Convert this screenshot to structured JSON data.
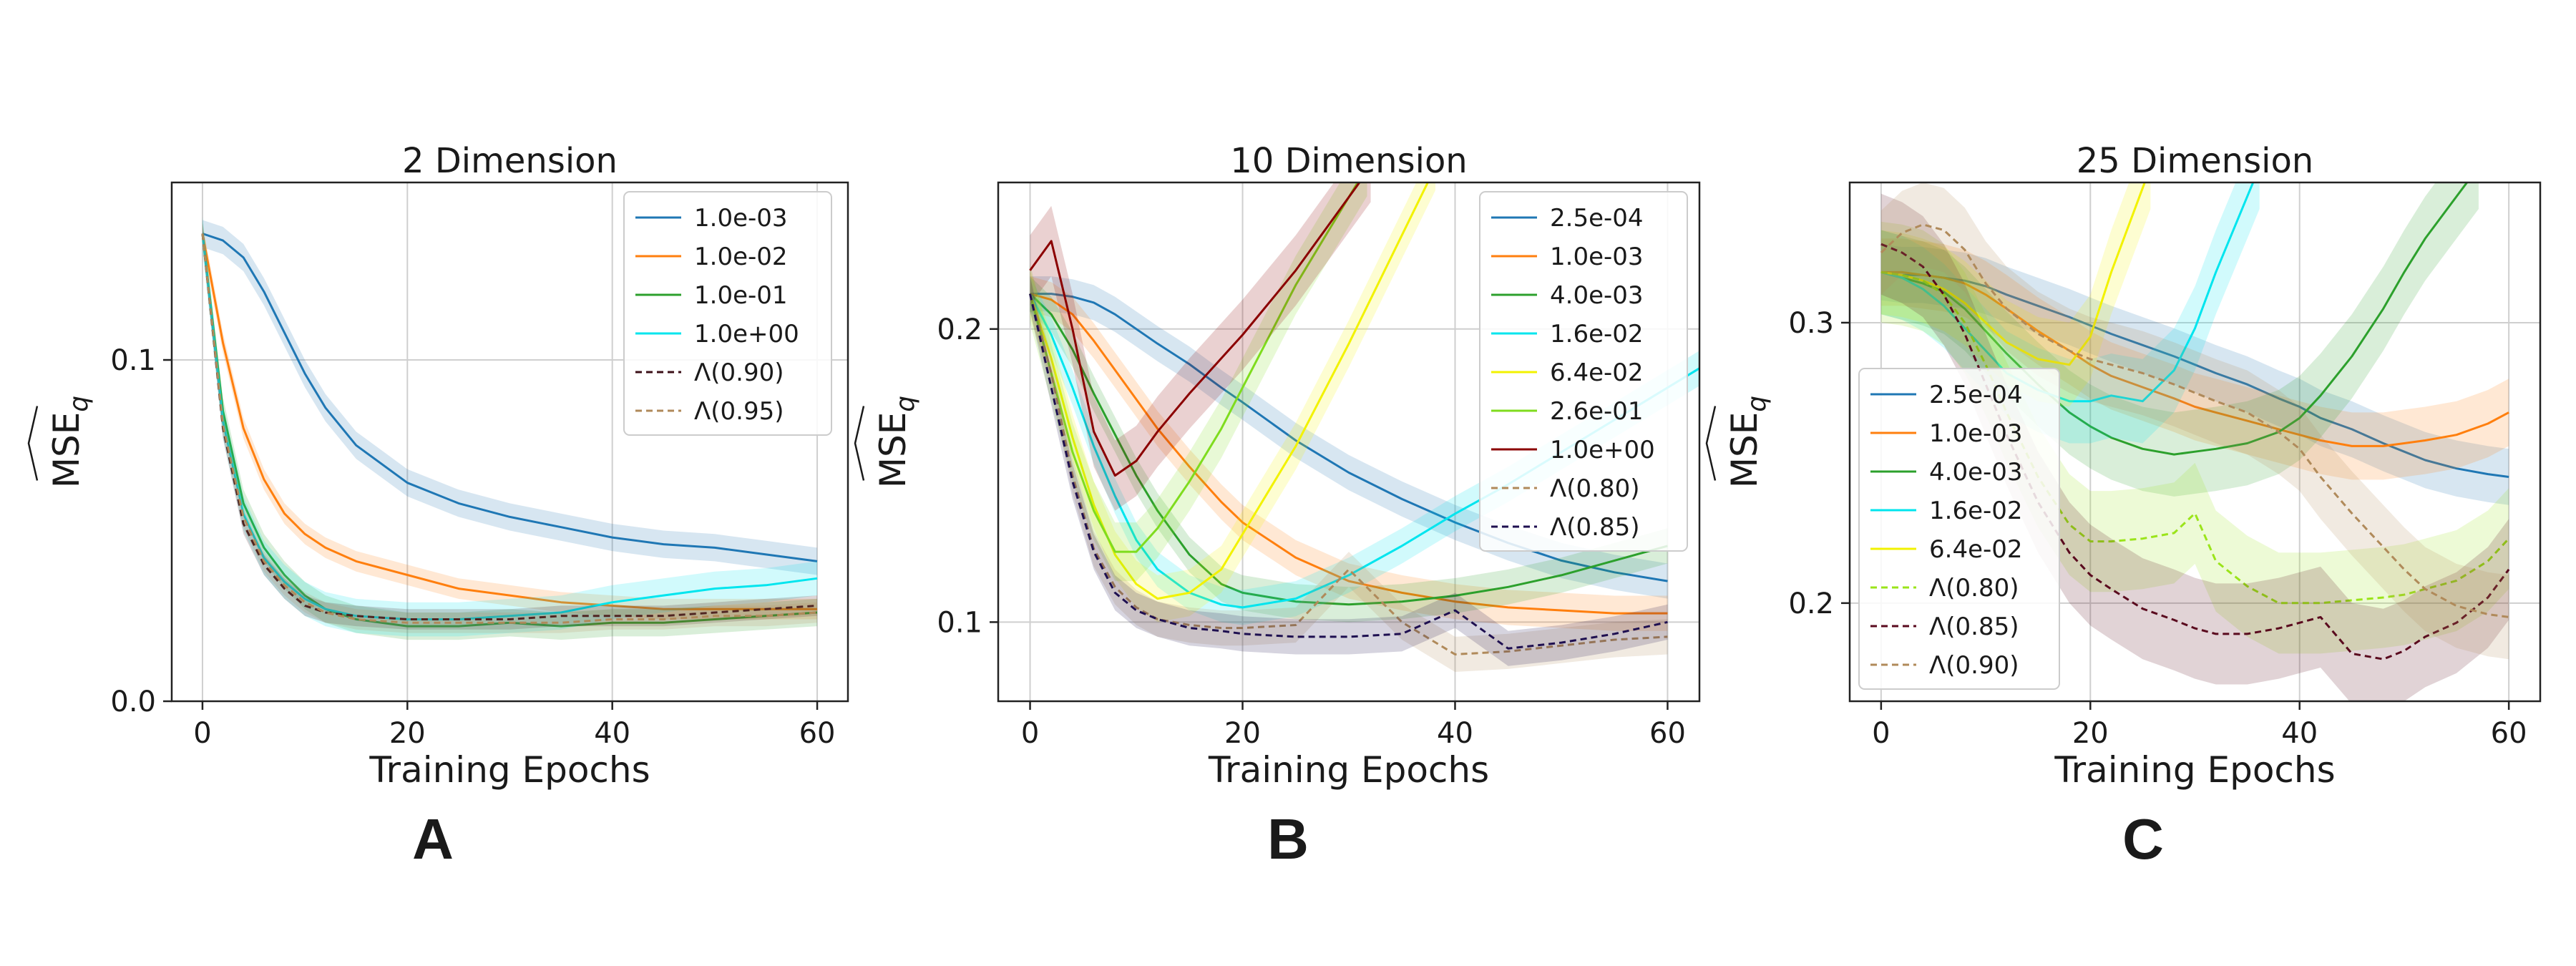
{
  "chart_data": [
    {
      "type": "line",
      "panel": "A",
      "title": "2 Dimension",
      "xlabel": "Training Epochs",
      "ylabel": "MSE_q",
      "xlim": [
        -3,
        63
      ],
      "ylim": [
        0.0,
        0.152
      ],
      "xticks": [
        0,
        20,
        40,
        60
      ],
      "xtick_labels": [
        "0",
        "20",
        "40",
        "60"
      ],
      "yticks": [
        0.0,
        0.1
      ],
      "ytick_labels": [
        "0.0",
        "0.1"
      ],
      "grid": true,
      "legend_position": "top-right",
      "x": [
        0,
        2,
        4,
        6,
        8,
        10,
        12,
        15,
        20,
        25,
        30,
        35,
        40,
        45,
        50,
        55,
        60
      ],
      "series": [
        {
          "name": "1.0e-03",
          "color": "#1f77b4",
          "dash": "solid",
          "band": 0.004,
          "values": [
            0.137,
            0.135,
            0.13,
            0.12,
            0.108,
            0.096,
            0.086,
            0.075,
            0.064,
            0.058,
            0.054,
            0.051,
            0.048,
            0.046,
            0.045,
            0.043,
            0.041
          ]
        },
        {
          "name": "1.0e-02",
          "color": "#ff7f0e",
          "dash": "solid",
          "band": 0.003,
          "values": [
            0.137,
            0.105,
            0.08,
            0.065,
            0.055,
            0.049,
            0.045,
            0.041,
            0.037,
            0.033,
            0.031,
            0.029,
            0.028,
            0.027,
            0.027,
            0.027,
            0.027
          ]
        },
        {
          "name": "1.0e-01",
          "color": "#2ca02c",
          "dash": "solid",
          "band": 0.004,
          "values": [
            0.137,
            0.085,
            0.058,
            0.045,
            0.037,
            0.031,
            0.027,
            0.024,
            0.022,
            0.022,
            0.023,
            0.022,
            0.023,
            0.023,
            0.024,
            0.025,
            0.026
          ]
        },
        {
          "name": "1.0e+00",
          "color": "#00e5ee",
          "dash": "solid",
          "band": 0.005,
          "values": [
            0.137,
            0.082,
            0.055,
            0.042,
            0.035,
            0.03,
            0.027,
            0.025,
            0.024,
            0.024,
            0.025,
            0.026,
            0.029,
            0.031,
            0.033,
            0.034,
            0.036
          ]
        },
        {
          "name": "Λ(0.90)",
          "color": "#3b0f17",
          "dash": "dashed",
          "band": 0.003,
          "values": [
            0.137,
            0.08,
            0.052,
            0.04,
            0.033,
            0.028,
            0.026,
            0.025,
            0.024,
            0.024,
            0.024,
            0.025,
            0.025,
            0.025,
            0.026,
            0.027,
            0.028
          ]
        },
        {
          "name": "Λ(0.95)",
          "color": "#b08a5a",
          "dash": "dashed",
          "band": 0.003,
          "values": [
            0.137,
            0.081,
            0.054,
            0.041,
            0.034,
            0.029,
            0.026,
            0.024,
            0.023,
            0.023,
            0.023,
            0.023,
            0.024,
            0.024,
            0.025,
            0.025,
            0.026
          ]
        }
      ]
    },
    {
      "type": "line",
      "panel": "B",
      "title": "10 Dimension",
      "xlabel": "Training Epochs",
      "ylabel": "MSE_q",
      "xlim": [
        -3,
        63
      ],
      "ylim": [
        0.073,
        0.25
      ],
      "xticks": [
        0,
        20,
        40,
        60
      ],
      "xtick_labels": [
        "0",
        "20",
        "40",
        "60"
      ],
      "yticks": [
        0.1,
        0.2
      ],
      "ytick_labels": [
        "0.1",
        "0.2"
      ],
      "grid": true,
      "legend_position": "top-right",
      "x": [
        0,
        2,
        4,
        6,
        8,
        10,
        12,
        15,
        18,
        20,
        25,
        30,
        35,
        40,
        45,
        50,
        55,
        60
      ],
      "series": [
        {
          "name": "2.5e-04",
          "color": "#1f77b4",
          "dash": "solid",
          "band": 0.006,
          "values": [
            0.212,
            0.212,
            0.211,
            0.209,
            0.205,
            0.2,
            0.195,
            0.188,
            0.18,
            0.175,
            0.162,
            0.151,
            0.142,
            0.134,
            0.127,
            0.121,
            0.117,
            0.114
          ]
        },
        {
          "name": "1.0e-03",
          "color": "#ff7f0e",
          "dash": "solid",
          "band": 0.006,
          "values": [
            0.212,
            0.21,
            0.205,
            0.196,
            0.186,
            0.176,
            0.166,
            0.153,
            0.141,
            0.134,
            0.122,
            0.114,
            0.11,
            0.107,
            0.105,
            0.104,
            0.103,
            0.103
          ]
        },
        {
          "name": "4.0e-03",
          "color": "#2ca02c",
          "dash": "solid",
          "band": 0.006,
          "values": [
            0.212,
            0.205,
            0.193,
            0.178,
            0.164,
            0.15,
            0.138,
            0.123,
            0.113,
            0.11,
            0.107,
            0.106,
            0.107,
            0.109,
            0.112,
            0.116,
            0.121,
            0.126
          ]
        },
        {
          "name": "1.6e-02",
          "color": "#00e5ee",
          "dash": "solid",
          "band": 0.006,
          "values": [
            0.212,
            0.198,
            0.18,
            0.16,
            0.143,
            0.128,
            0.118,
            0.11,
            0.106,
            0.105,
            0.108,
            0.116,
            0.126,
            0.137,
            0.147,
            0.158,
            null,
            null
          ]
        },
        {
          "name": "6.4e-02",
          "color": "#f2f200",
          "dash": "solid",
          "band": 0.008,
          "values": [
            0.212,
            0.19,
            0.163,
            0.14,
            0.123,
            0.113,
            0.108,
            0.11,
            0.118,
            0.13,
            0.16,
            0.195,
            0.232,
            null,
            null,
            null,
            null,
            null
          ]
        },
        {
          "name": "2.6e-01",
          "color": "#7fdc1e",
          "dash": "solid",
          "band": 0.01,
          "values": [
            0.212,
            0.185,
            0.158,
            0.138,
            0.124,
            0.124,
            0.132,
            0.148,
            0.166,
            0.18,
            0.215,
            0.245,
            null,
            null,
            null,
            null,
            null,
            null
          ]
        },
        {
          "name": "1.0e+00",
          "color": "#8b0000",
          "dash": "solid",
          "band": 0.012,
          "values": [
            0.22,
            0.23,
            0.2,
            0.165,
            0.15,
            0.155,
            0.165,
            0.178,
            0.19,
            0.198,
            0.22,
            0.245,
            null,
            null,
            null,
            null,
            null,
            null
          ]
        },
        {
          "name": "Λ(0.80)",
          "color": "#b08a5a",
          "dash": "dashed",
          "band": 0.006,
          "values": [
            0.212,
            0.185,
            0.15,
            0.125,
            0.112,
            0.105,
            0.101,
            0.099,
            0.098,
            0.098,
            0.099,
            0.118,
            0.1,
            0.089,
            0.09,
            0.092,
            0.094,
            0.095
          ]
        },
        {
          "name": "Λ(0.85)",
          "color": "#1e0f50",
          "dash": "dashed",
          "band": 0.006,
          "values": [
            0.212,
            0.18,
            0.148,
            0.124,
            0.11,
            0.104,
            0.101,
            0.098,
            0.097,
            0.096,
            0.095,
            0.095,
            0.096,
            0.104,
            0.091,
            0.093,
            0.096,
            0.1
          ]
        }
      ]
    },
    {
      "type": "line",
      "panel": "C",
      "title": "25 Dimension",
      "xlabel": "Training Epochs",
      "ylabel": "MSE_q",
      "xlim": [
        -3,
        63
      ],
      "ylim": [
        0.165,
        0.35
      ],
      "xticks": [
        0,
        20,
        40,
        60
      ],
      "xtick_labels": [
        "0",
        "20",
        "40",
        "60"
      ],
      "yticks": [
        0.2,
        0.3
      ],
      "ytick_labels": [
        "0.2",
        "0.3"
      ],
      "grid": true,
      "legend_position": "center-left",
      "x": [
        0,
        2,
        4,
        6,
        8,
        10,
        12,
        15,
        18,
        20,
        22,
        25,
        28,
        30,
        32,
        35,
        38,
        40,
        42,
        45,
        48,
        50,
        52,
        55,
        58,
        60
      ],
      "series": [
        {
          "name": "2.5e-04",
          "color": "#1f77b4",
          "dash": "solid",
          "band": 0.01,
          "values": [
            0.318,
            0.317,
            0.317,
            0.316,
            0.315,
            0.313,
            0.31,
            0.306,
            0.302,
            0.299,
            0.296,
            0.292,
            0.288,
            0.285,
            0.282,
            0.278,
            0.273,
            0.27,
            0.266,
            0.262,
            0.257,
            0.254,
            0.251,
            0.248,
            0.246,
            0.245
          ]
        },
        {
          "name": "1.0e-03",
          "color": "#ff7f0e",
          "dash": "solid",
          "band": 0.012,
          "values": [
            0.318,
            0.318,
            0.317,
            0.316,
            0.314,
            0.31,
            0.305,
            0.297,
            0.29,
            0.285,
            0.281,
            0.277,
            0.273,
            0.27,
            0.268,
            0.265,
            0.262,
            0.26,
            0.258,
            0.256,
            0.256,
            0.257,
            0.258,
            0.26,
            0.264,
            0.268
          ]
        },
        {
          "name": "4.0e-03",
          "color": "#2ca02c",
          "dash": "solid",
          "band": 0.015,
          "values": [
            0.318,
            0.316,
            0.314,
            0.311,
            0.305,
            0.297,
            0.289,
            0.278,
            0.268,
            0.263,
            0.259,
            0.255,
            0.253,
            0.254,
            0.255,
            0.257,
            0.261,
            0.266,
            0.274,
            0.288,
            0.305,
            0.318,
            0.33,
            0.345,
            null,
            null
          ]
        },
        {
          "name": "1.6e-02",
          "color": "#00e5ee",
          "dash": "solid",
          "band": 0.015,
          "values": [
            0.318,
            0.316,
            0.312,
            0.306,
            0.298,
            0.29,
            0.282,
            0.276,
            0.272,
            0.272,
            0.274,
            0.272,
            0.283,
            0.298,
            0.318,
            0.345,
            null,
            null,
            null,
            null,
            null,
            null,
            null,
            null,
            null,
            null
          ]
        },
        {
          "name": "6.4e-02",
          "color": "#f2f200",
          "dash": "solid",
          "band": 0.015,
          "values": [
            0.318,
            0.317,
            0.315,
            0.312,
            0.307,
            0.3,
            0.293,
            0.287,
            0.285,
            0.295,
            0.318,
            0.348,
            null,
            null,
            null,
            null,
            null,
            null,
            null,
            null,
            null,
            null,
            null,
            null,
            null,
            null
          ]
        },
        {
          "name": "Λ(0.80)",
          "color": "#9be41a",
          "dash": "dashed",
          "band": 0.018,
          "values": [
            0.318,
            0.317,
            0.315,
            0.31,
            0.3,
            0.285,
            0.268,
            0.245,
            0.228,
            0.222,
            0.222,
            0.223,
            0.225,
            0.232,
            0.215,
            0.206,
            0.2,
            0.2,
            0.2,
            0.201,
            0.202,
            0.203,
            0.205,
            0.208,
            0.215,
            0.223
          ]
        },
        {
          "name": "Λ(0.85)",
          "color": "#5a0a1e",
          "dash": "dashed",
          "band": 0.018,
          "values": [
            0.328,
            0.325,
            0.32,
            0.31,
            0.296,
            0.278,
            0.26,
            0.236,
            0.218,
            0.21,
            0.205,
            0.198,
            0.194,
            0.191,
            0.189,
            0.189,
            0.191,
            0.193,
            0.195,
            0.182,
            0.18,
            0.183,
            0.188,
            0.193,
            0.202,
            0.212
          ]
        },
        {
          "name": "Λ(0.90)",
          "color": "#b08a5a",
          "dash": "dashed",
          "band": 0.015,
          "values": [
            0.325,
            0.332,
            0.335,
            0.333,
            0.326,
            0.314,
            0.305,
            0.296,
            0.29,
            0.287,
            0.285,
            0.282,
            0.278,
            0.275,
            0.272,
            0.268,
            0.261,
            0.255,
            0.245,
            0.232,
            0.22,
            0.212,
            0.205,
            0.199,
            0.196,
            0.195
          ]
        }
      ]
    }
  ],
  "panel_letters": [
    "A",
    "B",
    "C"
  ]
}
